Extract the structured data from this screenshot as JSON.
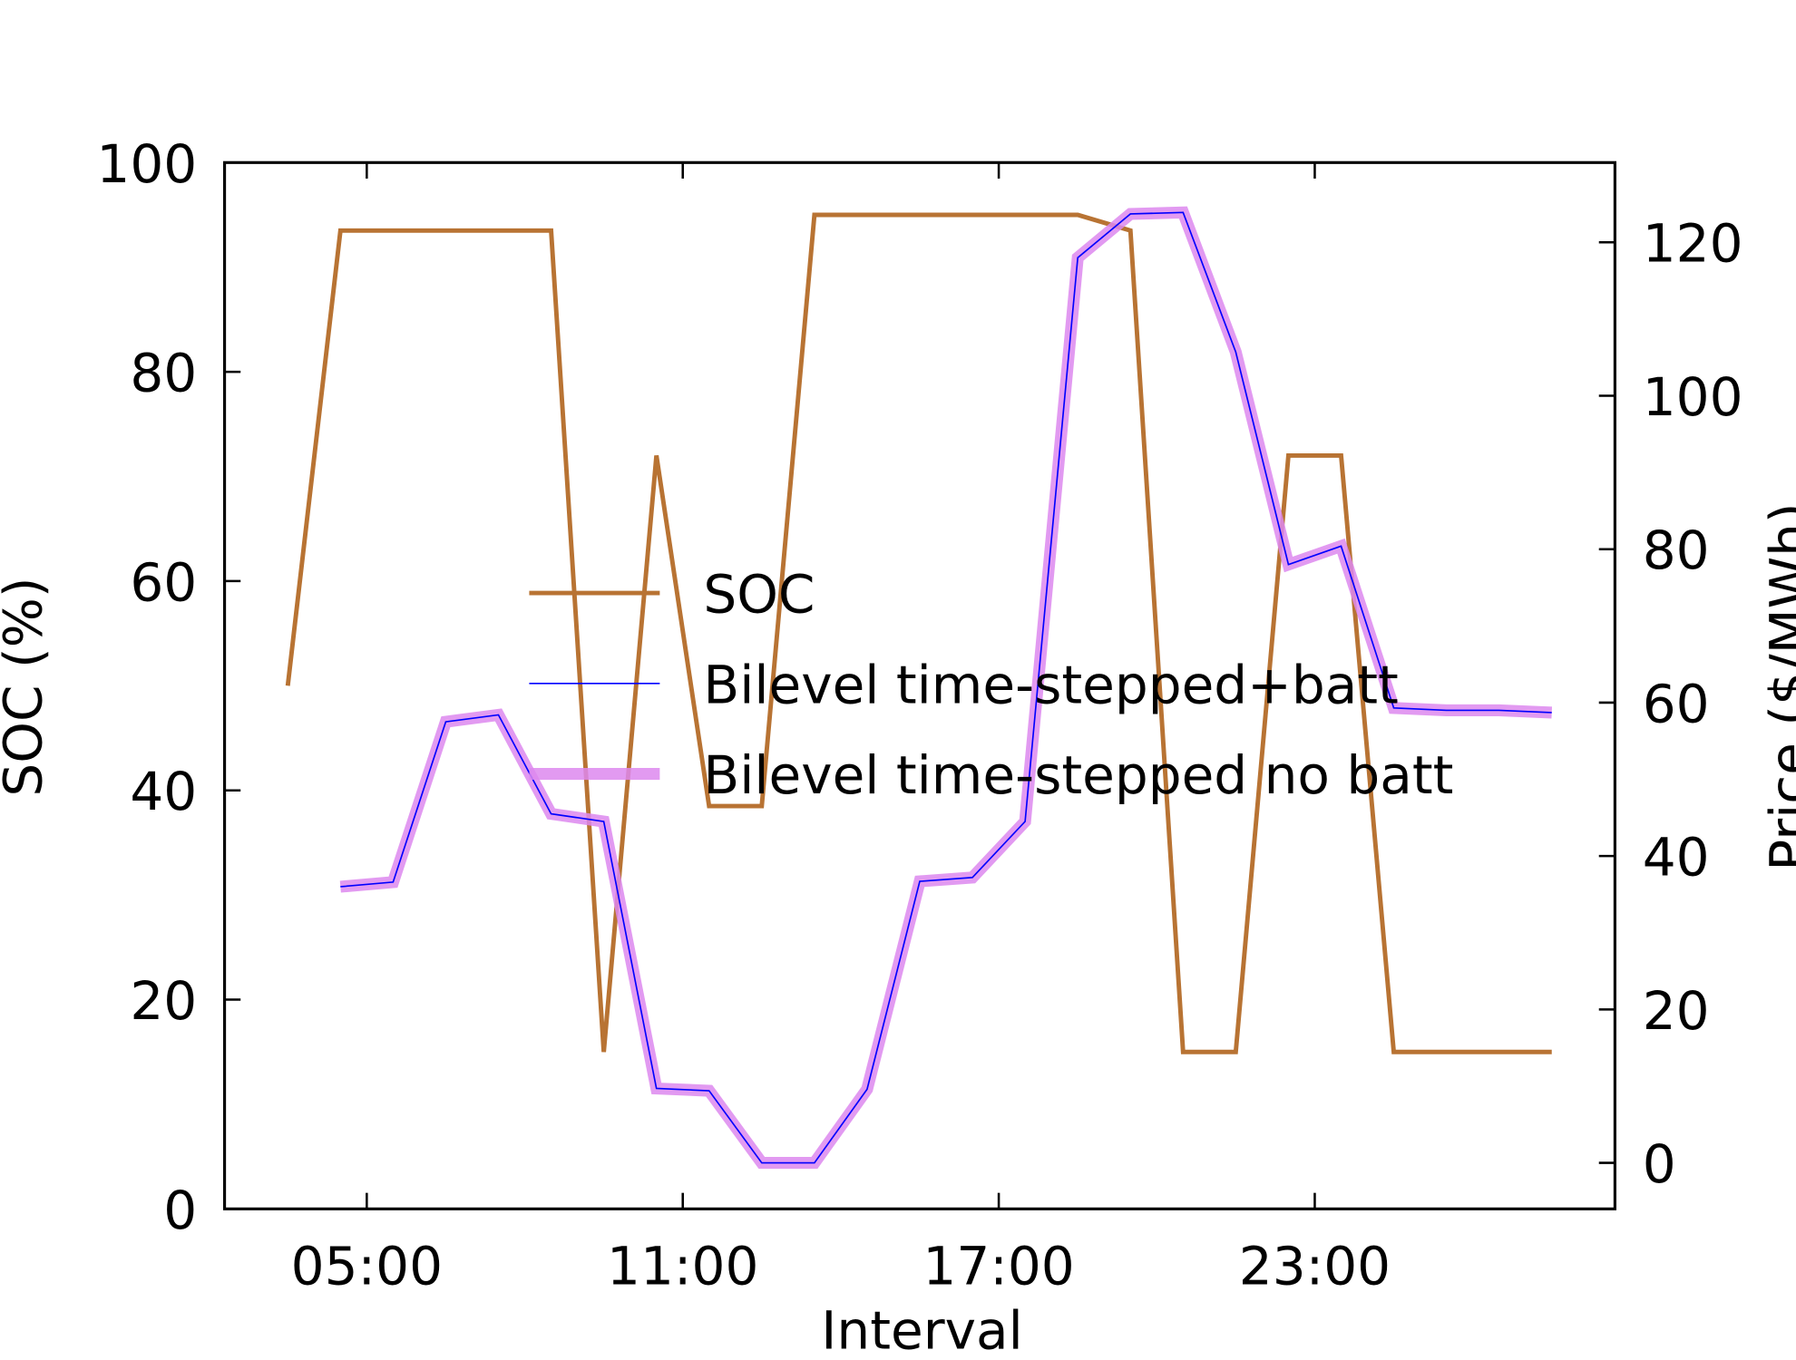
{
  "chart_data": {
    "type": "line",
    "x_label": "Interval",
    "y_label": "SOC (%)",
    "y2_label": "Price ($/MWh)",
    "x": [
      3.5,
      4.5,
      5.5,
      6.5,
      7.5,
      8.5,
      9.5,
      10.5,
      11.5,
      12.5,
      13.5,
      14.5,
      15.5,
      16.5,
      17.5,
      18.5,
      19.5,
      20.5,
      21.5,
      22.5,
      23.5,
      24.5,
      25.5,
      26.5,
      27.5
    ],
    "series": [
      {
        "name": "SOC",
        "color": "#b87333",
        "width": 3,
        "values": [
          50,
          93.5,
          93.5,
          93.5,
          93.5,
          93.5,
          15,
          72,
          38.5,
          38.5,
          95,
          95,
          95,
          95,
          95,
          95,
          93.5,
          15,
          15,
          72,
          72,
          15,
          15,
          15,
          15
        ]
      },
      {
        "name": "Bilevel time-stepped+batt",
        "color": "#0000ff",
        "width": 1,
        "axis": "y2",
        "values": [
          null,
          36,
          36.6,
          57.5,
          58.4,
          45.5,
          44.5,
          9.7,
          9.4,
          0,
          0,
          9.6,
          36.7,
          37.2,
          44.5,
          118,
          123.7,
          123.9,
          105.7,
          78,
          80.4,
          59.3,
          59,
          59,
          58.7
        ]
      },
      {
        "name": "Bilevel time-stepped no batt",
        "color": "#dd88ee",
        "width": 8,
        "axis": "y2",
        "values": [
          null,
          36,
          36.6,
          57.5,
          58.4,
          45.5,
          44.5,
          9.7,
          9.4,
          0,
          0,
          9.6,
          36.7,
          37.2,
          44.5,
          118,
          123.7,
          123.9,
          105.7,
          78,
          80.4,
          59.3,
          59,
          59,
          58.7
        ]
      }
    ],
    "xlim": [
      2.3,
      28.7
    ],
    "xticks": [
      {
        "value": 5,
        "label": "05:00"
      },
      {
        "value": 11,
        "label": "11:00"
      },
      {
        "value": 17,
        "label": "17:00"
      },
      {
        "value": 23,
        "label": "23:00"
      }
    ],
    "ylim": [
      0,
      100
    ],
    "yticks": [
      0,
      20,
      40,
      60,
      80,
      100
    ],
    "y2lim": [
      -6,
      130.4
    ],
    "y2ticks": [
      0,
      20,
      40,
      60,
      80,
      100,
      120
    ],
    "legend": "center",
    "grid": false
  }
}
